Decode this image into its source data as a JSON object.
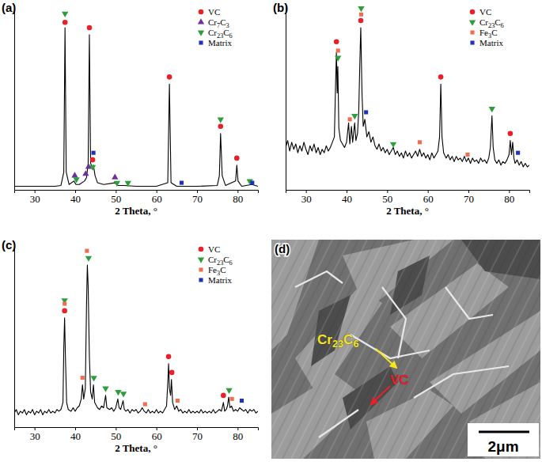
{
  "chart_data": [
    {
      "type": "line",
      "title": "(a)",
      "x_label": "2 Theta, °",
      "xlim": [
        25,
        85
      ],
      "xticks": [
        30,
        40,
        50,
        60,
        70,
        80
      ],
      "ylim": [
        0,
        105
      ],
      "yticks": [],
      "tick_labels": "x",
      "grid": false,
      "legend": "upper right",
      "series": [
        {
          "type": "line",
          "color": "#000000",
          "x": [
            25,
            30,
            35,
            36.5,
            37.2,
            37.5,
            37.8,
            38.5,
            39.7,
            40.2,
            41,
            42.3,
            42.8,
            43.2,
            43.5,
            43.8,
            44.2,
            44.5,
            44.9,
            45.5,
            47,
            49.8,
            50.5,
            52,
            55,
            60,
            62.8,
            63.2,
            63.6,
            65,
            70,
            75,
            75.5,
            75.8,
            76.2,
            77,
            79.5,
            79.8,
            80.1,
            81,
            83.5,
            85
          ],
          "values": [
            2,
            2,
            2,
            2.5,
            10,
            92,
            10,
            3,
            5,
            3,
            3,
            5,
            7,
            15,
            88,
            15,
            13,
            14,
            8,
            4,
            3,
            4,
            2.5,
            2.5,
            2,
            2,
            4,
            60,
            4,
            2,
            2,
            2.5,
            8,
            32,
            8,
            2.5,
            5,
            14,
            5,
            2,
            3,
            2
          ]
        },
        {
          "name": "VC",
          "type": "scatter",
          "color": "#e8202a",
          "marker": "circle",
          "x": [
            37.5,
            43.5,
            44.3,
            63.2,
            75.8,
            79.8
          ],
          "values": [
            95,
            92,
            17,
            64,
            36,
            18
          ]
        },
        {
          "name": "Cr7C3",
          "type": "scatter",
          "color": "#7030a0",
          "marker": "triangle",
          "x": [
            39.9,
            42.6,
            43.3,
            49.8
          ],
          "values": [
            8,
            9,
            13,
            7
          ]
        },
        {
          "name": "Cr23C6",
          "type": "scatter",
          "color": "#2e9e3c",
          "marker": "triangle-down",
          "x": [
            37.5,
            40.3,
            44.3,
            50.3,
            53,
            75.8,
            83
          ],
          "values": [
            100,
            6,
            13,
            4,
            4,
            40,
            5
          ]
        },
        {
          "name": "Matrix",
          "type": "scatter",
          "color": "#1f2fbf",
          "marker": "square",
          "x": [
            44.5,
            66.2,
            83.6
          ],
          "values": [
            21,
            4,
            4
          ]
        }
      ]
    },
    {
      "type": "line",
      "title": "(b)",
      "x_label": "2 Theta, °",
      "xlim": [
        25,
        85
      ],
      "xticks": [
        30,
        40,
        50,
        60,
        70,
        80
      ],
      "ylim": [
        0,
        105
      ],
      "yticks": [],
      "tick_labels": "x",
      "grid": false,
      "legend": "upper right",
      "series": [
        {
          "type": "line",
          "color": "#000000",
          "x": [
            25,
            25.5,
            26,
            26.5,
            27,
            27.5,
            28,
            28.5,
            29,
            29.5,
            30,
            30.5,
            31,
            31.5,
            32,
            32.5,
            33,
            33.5,
            34,
            34.5,
            35,
            35.5,
            36,
            36.5,
            37,
            37.3,
            37.5,
            37.7,
            37.85,
            38.1,
            38.5,
            39,
            39.5,
            40,
            40.5,
            40.8,
            41.2,
            41.5,
            42,
            42.3,
            42.7,
            43,
            43.3,
            43.5,
            43.8,
            44.1,
            44.5,
            45,
            45.5,
            46,
            46.5,
            47,
            47.5,
            48,
            48.5,
            49,
            49.5,
            50,
            50.5,
            51,
            51.5,
            52,
            52.5,
            53,
            53.5,
            54,
            54.5,
            55,
            55.5,
            56,
            56.5,
            57,
            57.5,
            58,
            58.5,
            59,
            59.5,
            60,
            60.5,
            61,
            61.5,
            62,
            62.5,
            62.9,
            63.2,
            63.5,
            63.9,
            64.5,
            65,
            65.5,
            66,
            66.5,
            67,
            67.5,
            68,
            68.5,
            69,
            69.5,
            70,
            70.5,
            71,
            71.5,
            72,
            72.5,
            73,
            73.5,
            74,
            74.5,
            75,
            75.4,
            75.8,
            76.1,
            76.5,
            77,
            77.5,
            78,
            78.5,
            79,
            79.5,
            80,
            80.3,
            80.6,
            80.9,
            81.2,
            81.5,
            82,
            82.5,
            83,
            83.5,
            84,
            84.5,
            85
          ],
          "values": [
            24,
            28,
            22,
            27,
            23,
            26,
            21,
            25,
            22,
            27,
            23,
            20,
            25,
            22,
            26,
            21,
            24,
            20,
            23,
            21,
            25,
            22,
            24,
            27,
            30,
            60,
            78,
            55,
            70,
            35,
            28,
            26,
            24,
            27,
            38,
            26,
            36,
            27,
            38,
            28,
            32,
            45,
            75,
            92,
            55,
            36,
            40,
            30,
            33,
            27,
            30,
            25,
            23,
            26,
            22,
            24,
            21,
            23,
            20,
            22,
            24,
            20,
            22,
            19,
            21,
            18,
            22,
            19,
            21,
            18,
            20,
            22,
            19,
            23,
            19,
            21,
            18,
            20,
            17,
            21,
            18,
            20,
            22,
            30,
            60,
            30,
            21,
            18,
            20,
            17,
            19,
            16,
            19,
            17,
            18,
            16,
            19,
            16,
            18,
            15,
            18,
            16,
            17,
            15,
            18,
            16,
            17,
            15,
            18,
            24,
            42,
            24,
            17,
            15,
            17,
            14,
            16,
            15,
            17,
            20,
            28,
            20,
            27,
            18,
            15,
            17,
            14,
            16,
            13,
            15,
            13,
            14
          ]
        },
        {
          "name": "VC",
          "type": "scatter",
          "color": "#e8202a",
          "marker": "circle",
          "x": [
            37.5,
            43.5,
            63.2,
            80.3
          ],
          "values": [
            84,
            96,
            64,
            32
          ]
        },
        {
          "name": "Cr23C6",
          "type": "scatter",
          "color": "#2e9e3c",
          "marker": "triangle-down",
          "x": [
            37.9,
            42,
            43.6,
            51.5,
            75.8
          ],
          "values": [
            75,
            42,
            103,
            26,
            46
          ]
        },
        {
          "name": "Fe3C",
          "type": "scatter",
          "color": "#f26c4f",
          "marker": "square",
          "x": [
            37.9,
            40.8,
            43.6,
            58,
            69.8
          ],
          "values": [
            79,
            40,
            99.5,
            27,
            20
          ]
        },
        {
          "name": "Matrix",
          "type": "scatter",
          "color": "#1f2fbf",
          "marker": "square",
          "x": [
            44.8,
            82.2
          ],
          "values": [
            44,
            21
          ]
        }
      ]
    },
    {
      "type": "line",
      "title": "(c)",
      "x_label": "2 Theta, °",
      "xlim": [
        25,
        85
      ],
      "xticks": [
        30,
        40,
        50,
        60,
        70,
        80
      ],
      "ylim": [
        0,
        105
      ],
      "yticks": [],
      "tick_labels": "x",
      "grid": false,
      "legend": "upper right",
      "series": [
        {
          "type": "line",
          "color": "#000000",
          "x": [
            25,
            25.5,
            26,
            26.5,
            27,
            27.5,
            28,
            28.5,
            29,
            29.5,
            30,
            30.5,
            31,
            31.5,
            32,
            32.5,
            33,
            33.5,
            34,
            34.5,
            35,
            35.5,
            36,
            36.5,
            37,
            37.2,
            37.4,
            37.6,
            37.9,
            38.3,
            39,
            39.5,
            40,
            40.5,
            41,
            41.5,
            41.8,
            42.1,
            42.5,
            42.8,
            43,
            43.2,
            43.5,
            43.8,
            44.2,
            44.5,
            44.8,
            45.5,
            46,
            46.5,
            47,
            47.5,
            47.8,
            48.5,
            49,
            49.5,
            50,
            50.5,
            50.8,
            51.2,
            51.8,
            52.1,
            52.5,
            53,
            53.5,
            54,
            54.5,
            55,
            55.5,
            56,
            56.5,
            57,
            57.5,
            58,
            58.5,
            59,
            59.5,
            60,
            60.5,
            61,
            61.5,
            62,
            62.5,
            62.8,
            63,
            63.2,
            63.5,
            63.7,
            64,
            64.5,
            65,
            65.5,
            66,
            66.5,
            67,
            67.5,
            68,
            68.5,
            69,
            69.5,
            70,
            70.5,
            71,
            71.5,
            72,
            72.5,
            73,
            73.5,
            74,
            74.5,
            75,
            75.5,
            76,
            76.5,
            76.8,
            77.2,
            77.5,
            77.8,
            78.1,
            78.5,
            79,
            79.5,
            80,
            80.5,
            81,
            81.5,
            82,
            82.5,
            83,
            83.5,
            84,
            84.5,
            85
          ],
          "values": [
            8,
            10,
            7,
            9,
            8,
            10,
            7,
            9,
            8,
            10,
            7,
            9,
            8,
            10,
            7,
            9,
            8,
            10,
            8,
            9,
            8,
            10,
            9,
            10,
            14,
            45,
            62,
            40,
            14,
            10,
            9,
            11,
            9,
            11,
            12,
            16,
            24,
            16,
            22,
            70,
            92,
            80,
            40,
            20,
            16,
            24,
            14,
            11,
            10,
            12,
            11,
            18,
            11,
            10,
            11,
            9,
            11,
            16,
            11,
            10,
            15,
            10,
            9,
            10,
            8,
            10,
            9,
            10,
            8,
            9,
            11,
            9,
            8,
            10,
            8,
            9,
            8,
            10,
            8,
            9,
            8,
            10,
            12,
            25,
            36,
            22,
            18,
            27,
            14,
            10,
            12,
            9,
            10,
            8,
            9,
            8,
            10,
            8,
            9,
            8,
            9,
            8,
            10,
            8,
            9,
            8,
            9,
            8,
            10,
            8,
            9,
            10,
            9,
            14,
            9,
            10,
            12,
            17,
            11,
            12,
            9,
            10,
            9,
            11,
            10,
            9,
            10,
            8,
            10,
            9,
            10,
            8,
            9
          ]
        },
        {
          "name": "VC",
          "type": "scatter",
          "color": "#e8202a",
          "marker": "circle",
          "x": [
            37.4,
            63,
            63.8,
            76.5
          ],
          "values": [
            66,
            40,
            31,
            18
          ]
        },
        {
          "name": "Cr23C6",
          "type": "scatter",
          "color": "#2e9e3c",
          "marker": "triangle-down",
          "x": [
            37.4,
            43.3,
            44.6,
            47.5,
            50.6,
            51.9,
            77.9
          ],
          "values": [
            72,
            96,
            28,
            22,
            20,
            19,
            21
          ]
        },
        {
          "name": "Fe3C",
          "type": "scatter",
          "color": "#f26c4f",
          "marker": "square",
          "x": [
            37.4,
            41.8,
            42.9,
            57.2,
            65.2,
            78.6
          ],
          "values": [
            70,
            28,
            100,
            13,
            15,
            16
          ]
        },
        {
          "name": "Matrix",
          "type": "scatter",
          "color": "#1f2fbf",
          "marker": "square",
          "x": [
            81
          ],
          "values": [
            15
          ]
        }
      ]
    }
  ],
  "micrograph": {
    "label": "(d)",
    "annotations": [
      {
        "text": "Cr23C6",
        "color": "#f5e61e"
      },
      {
        "text": "VC",
        "color": "#e8202a"
      }
    ],
    "scale_bar": "2μm"
  }
}
